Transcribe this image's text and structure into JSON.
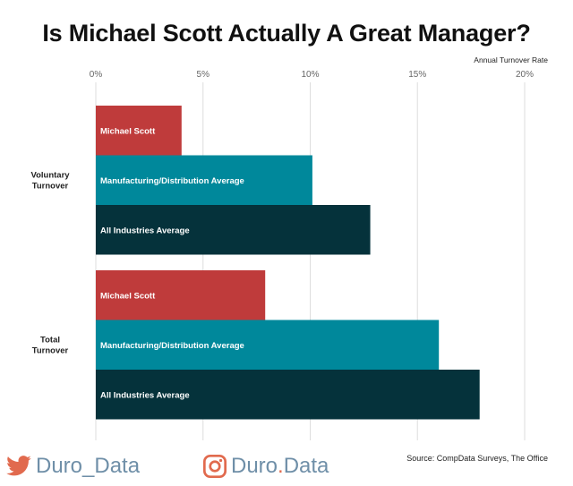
{
  "chart_data": {
    "type": "bar",
    "orientation": "horizontal",
    "title": "Is Michael Scott Actually A Great Manager?",
    "axis_title": "Annual Turnover Rate",
    "xlim": [
      0,
      20
    ],
    "ticks": [
      {
        "value": 0,
        "label": "0%"
      },
      {
        "value": 5,
        "label": "5%"
      },
      {
        "value": 10,
        "label": "10%"
      },
      {
        "value": 15,
        "label": "15%"
      },
      {
        "value": 20,
        "label": "20%"
      }
    ],
    "groups": [
      {
        "label": [
          "Voluntary",
          "Turnover"
        ],
        "bars": [
          {
            "name": "Michael Scott",
            "value": 4.0,
            "color": "#bf3b3b"
          },
          {
            "name": "Manufacturing/Distribution Average",
            "value": 10.1,
            "color": "#00889b"
          },
          {
            "name": "All Industries Average",
            "value": 12.8,
            "color": "#05323b"
          }
        ]
      },
      {
        "label": [
          "Total",
          "Turnover"
        ],
        "bars": [
          {
            "name": "Michael Scott",
            "value": 7.9,
            "color": "#bf3b3b"
          },
          {
            "name": "Manufacturing/Distribution Average",
            "value": 16.0,
            "color": "#00889b"
          },
          {
            "name": "All Industries Average",
            "value": 17.9,
            "color": "#05323b"
          }
        ]
      }
    ],
    "gridlines": true
  },
  "footer": {
    "twitter_handle_a": "Duro",
    "twitter_handle_b": "_Data",
    "instagram_handle_a": "Duro",
    "instagram_dot": ".",
    "instagram_handle_b": "Data",
    "source": "Source: CompData Surveys, The Office",
    "twitter_color": "#1da1f2",
    "instagram_color": "#e16a4e"
  }
}
